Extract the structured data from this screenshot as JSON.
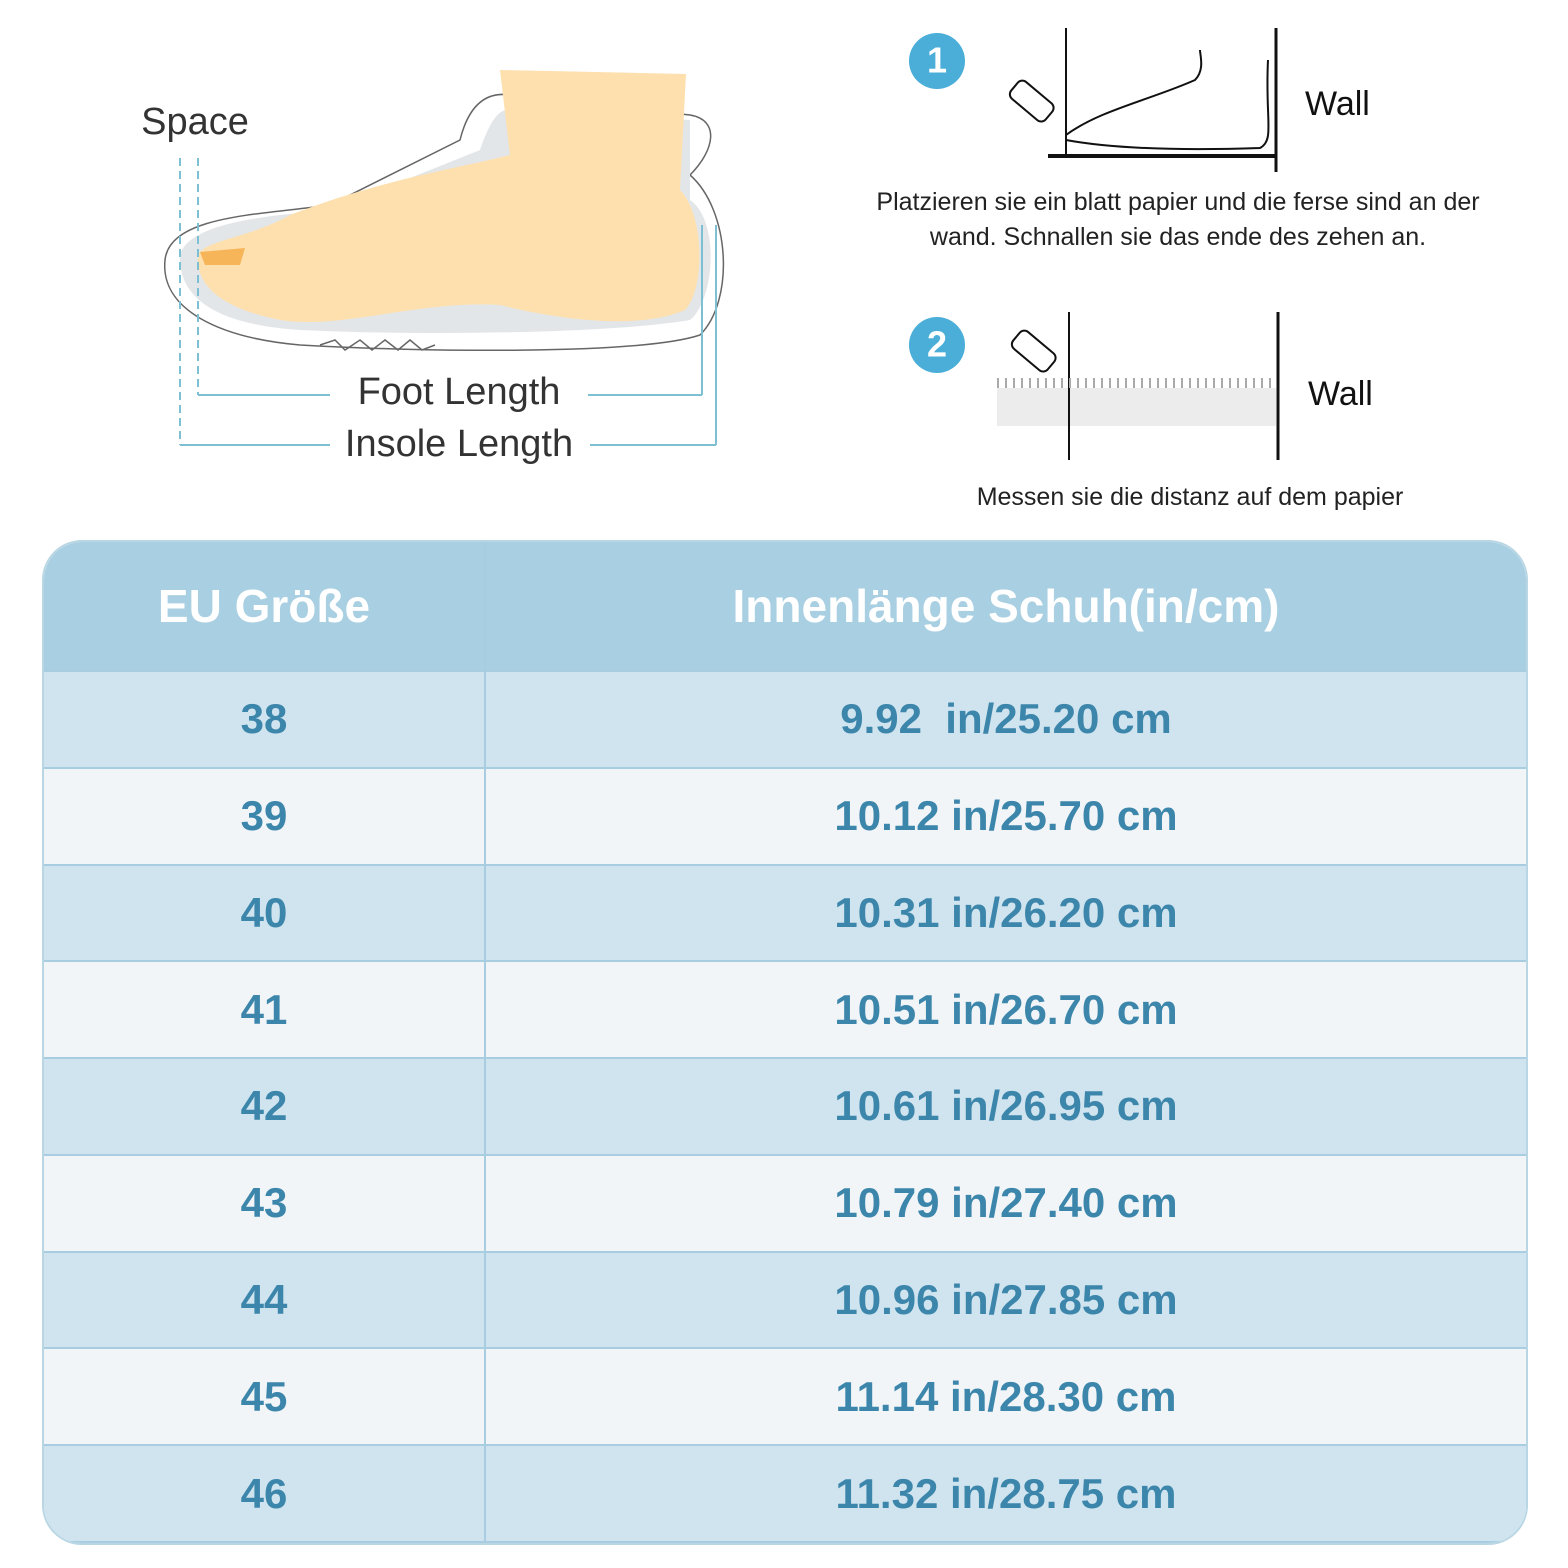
{
  "diagram": {
    "space": "Space",
    "foot_length": "Foot Length",
    "insole_length": "Insole Length"
  },
  "steps": [
    {
      "number": "1",
      "wall": "Wall",
      "lines": [
        "Platzieren sie ein blatt papier und die ferse sind an der",
        "wand. Schnallen sie das ende des zehen an."
      ]
    },
    {
      "number": "2",
      "wall": "Wall",
      "lines": [
        "Messen sie die distanz auf dem papier"
      ]
    }
  ],
  "table": {
    "header": [
      "EU Größe",
      "Innenlänge Schuh(in/cm)"
    ],
    "rows": [
      [
        "38",
        "9.92  in/25.20 cm"
      ],
      [
        "39",
        "10.12 in/25.70 cm"
      ],
      [
        "40",
        "10.31 in/26.20 cm"
      ],
      [
        "41",
        "10.51 in/26.70 cm"
      ],
      [
        "42",
        "10.61 in/26.95 cm"
      ],
      [
        "43",
        "10.79 in/27.40 cm"
      ],
      [
        "44",
        "10.96 in/27.85 cm"
      ],
      [
        "45",
        "11.14 in/28.30 cm"
      ],
      [
        "46",
        "11.32 in/28.75 cm"
      ]
    ]
  }
}
